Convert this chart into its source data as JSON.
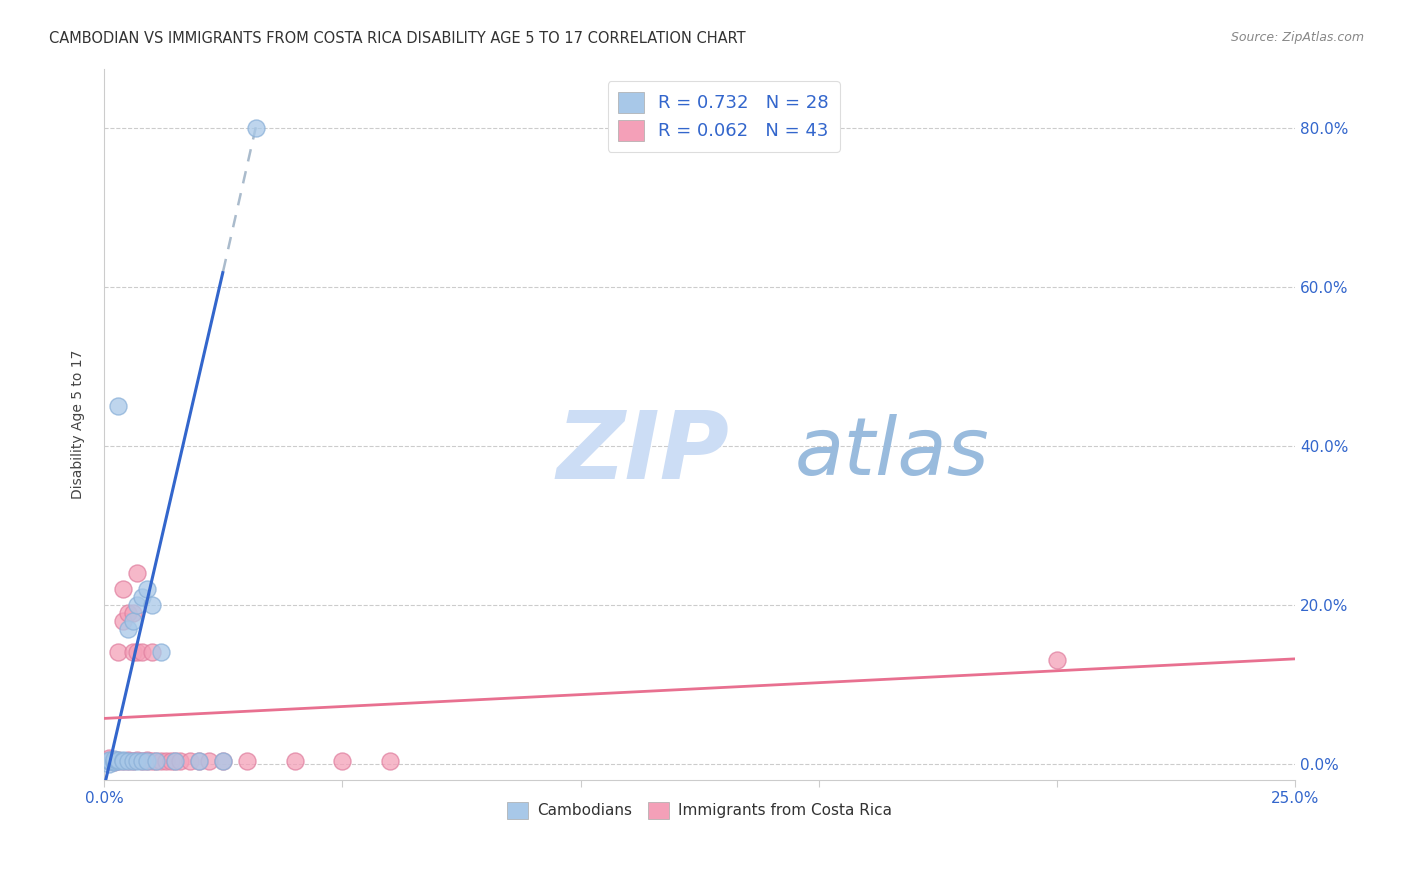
{
  "title": "CAMBODIAN VS IMMIGRANTS FROM COSTA RICA DISABILITY AGE 5 TO 17 CORRELATION CHART",
  "source": "Source: ZipAtlas.com",
  "ylabel": "Disability Age 5 to 17",
  "xlim": [
    0.0,
    0.25
  ],
  "ylim": [
    -0.02,
    0.875
  ],
  "cambodian_color": "#a8c8e8",
  "cambodian_edge_color": "#8ab0d8",
  "costarica_color": "#f4a0b8",
  "costarica_edge_color": "#e080a0",
  "cambodian_line_color": "#3366cc",
  "costarica_line_color": "#e87090",
  "dashed_line_color": "#aabbcc",
  "watermark_zip": "ZIP",
  "watermark_atlas": "atlas",
  "watermark_color_zip": "#ccddf0",
  "watermark_color_atlas": "#99bbdd",
  "legend_R1": "R = 0.732",
  "legend_N1": "N = 28",
  "legend_R2": "R = 0.062",
  "legend_N2": "N = 43",
  "xaxis_ticks": [
    0.0,
    0.05,
    0.1,
    0.15,
    0.2,
    0.25
  ],
  "yaxis_ticks": [
    0.0,
    0.2,
    0.4,
    0.6,
    0.8
  ],
  "cambodian_regression": [
    0.0,
    0.0,
    0.025,
    0.6
  ],
  "cambodian_dashed": [
    0.025,
    0.6,
    0.032,
    0.8
  ],
  "costarica_regression": [
    0.0,
    0.055,
    0.25,
    0.135
  ],
  "cambodian_scatter_x": [
    0.001,
    0.001,
    0.001,
    0.002,
    0.002,
    0.002,
    0.003,
    0.003,
    0.003,
    0.004,
    0.004,
    0.005,
    0.005,
    0.006,
    0.006,
    0.007,
    0.007,
    0.008,
    0.008,
    0.009,
    0.009,
    0.01,
    0.011,
    0.012,
    0.015,
    0.02,
    0.025,
    0.032
  ],
  "cambodian_scatter_y": [
    0.0,
    0.003,
    0.005,
    0.002,
    0.004,
    0.006,
    0.003,
    0.005,
    0.45,
    0.005,
    0.003,
    0.17,
    0.003,
    0.18,
    0.003,
    0.2,
    0.003,
    0.21,
    0.003,
    0.22,
    0.003,
    0.2,
    0.003,
    0.14,
    0.003,
    0.003,
    0.003,
    0.8
  ],
  "costarica_scatter_x": [
    0.001,
    0.001,
    0.001,
    0.002,
    0.002,
    0.002,
    0.003,
    0.003,
    0.003,
    0.004,
    0.004,
    0.004,
    0.005,
    0.005,
    0.005,
    0.006,
    0.006,
    0.006,
    0.007,
    0.007,
    0.007,
    0.008,
    0.008,
    0.009,
    0.009,
    0.01,
    0.01,
    0.011,
    0.012,
    0.013,
    0.014,
    0.015,
    0.016,
    0.018,
    0.02,
    0.022,
    0.025,
    0.03,
    0.04,
    0.05,
    0.06,
    0.2,
    0.001
  ],
  "costarica_scatter_y": [
    0.003,
    0.005,
    0.007,
    0.003,
    0.005,
    0.002,
    0.14,
    0.003,
    0.005,
    0.22,
    0.003,
    0.18,
    0.003,
    0.19,
    0.005,
    0.14,
    0.003,
    0.19,
    0.24,
    0.005,
    0.14,
    0.003,
    0.14,
    0.003,
    0.005,
    0.003,
    0.14,
    0.003,
    0.003,
    0.003,
    0.003,
    0.003,
    0.003,
    0.003,
    0.003,
    0.003,
    0.003,
    0.003,
    0.003,
    0.003,
    0.003,
    0.13,
    0.003
  ]
}
